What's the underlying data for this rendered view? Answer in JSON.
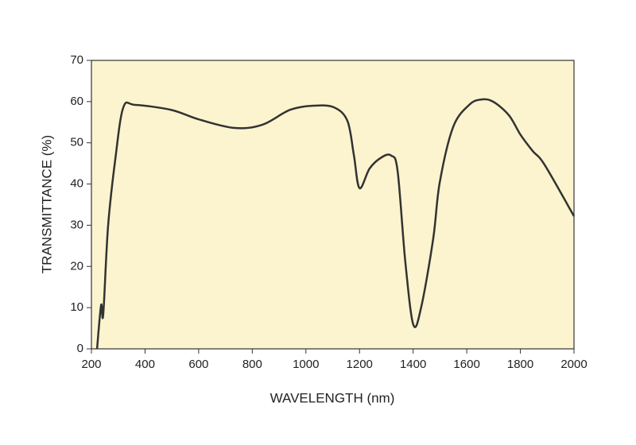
{
  "chart_data": {
    "type": "line",
    "x_label": "WAVELENGTH (nm)",
    "y_label": "TRANSMITTANCE (%)",
    "xlim": [
      200,
      2000
    ],
    "ylim": [
      0,
      70
    ],
    "xticks": [
      200,
      400,
      600,
      800,
      1000,
      1200,
      1400,
      1600,
      1800,
      2000
    ],
    "yticks": [
      0,
      10,
      20,
      30,
      40,
      50,
      60,
      70
    ],
    "background": "#fcf4cf",
    "color": "#333333",
    "x": [
      221,
      236,
      244,
      262,
      289,
      319,
      363,
      497,
      600,
      734,
      838,
      941,
      1030,
      1105,
      1155,
      1179,
      1200,
      1238,
      1283,
      1318,
      1342,
      1371,
      1401,
      1431,
      1475,
      1499,
      1549,
      1609,
      1653,
      1698,
      1757,
      1801,
      1846,
      1890,
      2000
    ],
    "values": [
      0,
      10.6,
      8.3,
      29.7,
      46,
      58.6,
      59.2,
      58,
      55.7,
      53.6,
      54.4,
      58,
      59,
      58.6,
      55.3,
      47,
      39,
      43.8,
      46.5,
      46.9,
      43.2,
      21,
      5.8,
      10.4,
      26.8,
      40.3,
      53.8,
      59.2,
      60.5,
      60,
      56.7,
      51.9,
      48,
      44.7,
      32.2
    ]
  }
}
